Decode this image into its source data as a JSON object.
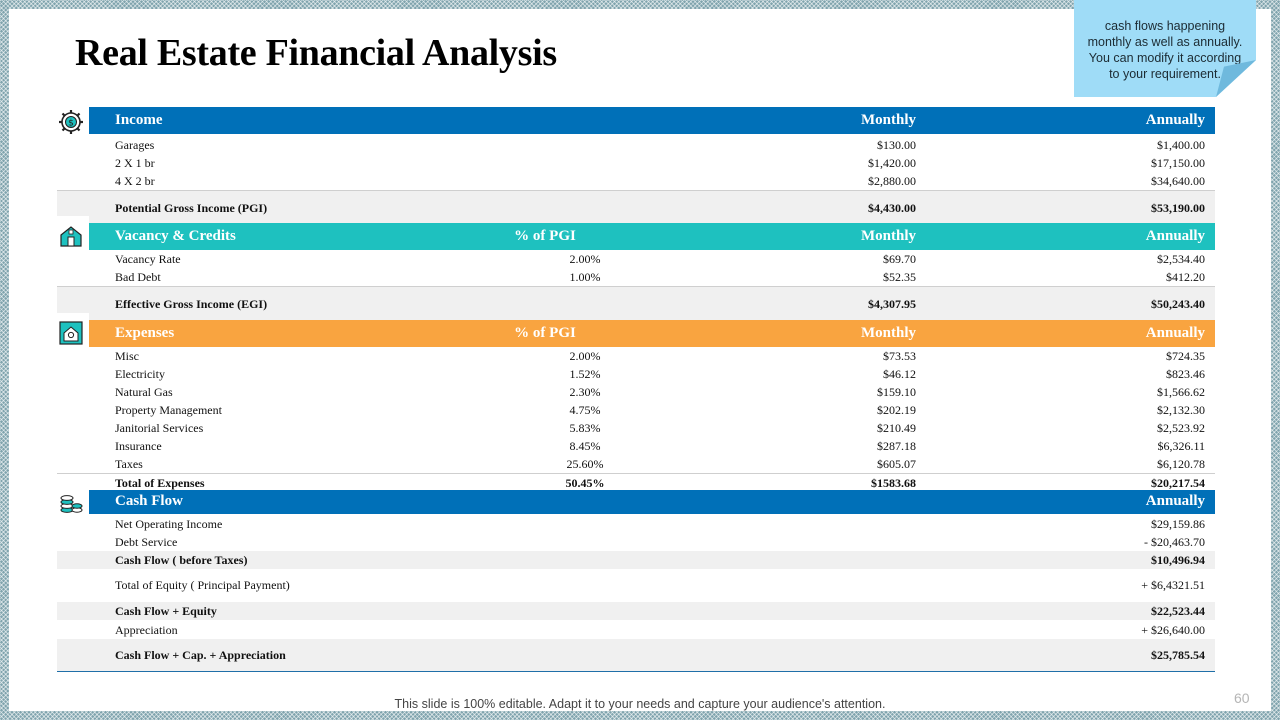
{
  "title": "Real Estate Financial Analysis",
  "note": "cash flows happening monthly as well as annually. You can modify it according to your requirement.",
  "page_number": "60",
  "footer": "This slide is 100% editable. Adapt it to your needs and capture your audience's attention.",
  "colors": {
    "blue": "#0070b8",
    "teal": "#1ec1bf",
    "orange": "#f9a440"
  },
  "income": {
    "header": {
      "label": "Income",
      "monthly": "Monthly",
      "annually": "Annually"
    },
    "rows": [
      {
        "label": "Garages",
        "monthly": "$130.00",
        "annually": "$1,400.00"
      },
      {
        "label": "2 X 1 br",
        "monthly": "$1,420.00",
        "annually": "$17,150.00"
      },
      {
        "label": "4 X 2 br",
        "monthly": "$2,880.00",
        "annually": "$34,640.00"
      }
    ],
    "total": {
      "label": "Potential Gross Income (PGI)",
      "monthly": "$4,430.00",
      "annually": "$53,190.00"
    }
  },
  "vacancy": {
    "header": {
      "label": "Vacancy & Credits",
      "pct": "% of PGI",
      "monthly": "Monthly",
      "annually": "Annually"
    },
    "rows": [
      {
        "label": "Vacancy Rate",
        "pct": "2.00%",
        "monthly": "$69.70",
        "annually": "$2,534.40"
      },
      {
        "label": "Bad Debt",
        "pct": "1.00%",
        "monthly": "$52.35",
        "annually": "$412.20"
      }
    ],
    "total": {
      "label": "Effective Gross Income (EGI)",
      "monthly": "$4,307.95",
      "annually": "$50,243.40"
    }
  },
  "expenses": {
    "header": {
      "label": "Expenses",
      "pct": "% of PGI",
      "monthly": "Monthly",
      "annually": "Annually"
    },
    "rows": [
      {
        "label": "Misc",
        "pct": "2.00%",
        "monthly": "$73.53",
        "annually": "$724.35"
      },
      {
        "label": "Electricity",
        "pct": "1.52%",
        "monthly": "$46.12",
        "annually": "$823.46"
      },
      {
        "label": "Natural Gas",
        "pct": "2.30%",
        "monthly": "$159.10",
        "annually": "$1,566.62"
      },
      {
        "label": "Property Management",
        "pct": "4.75%",
        "monthly": "$202.19",
        "annually": "$2,132.30"
      },
      {
        "label": "Janitorial Services",
        "pct": "5.83%",
        "monthly": "$210.49",
        "annually": "$2,523.92"
      },
      {
        "label": "Insurance",
        "pct": "8.45%",
        "monthly": "$287.18",
        "annually": "$6,326.11"
      },
      {
        "label": "Taxes",
        "pct": "25.60%",
        "monthly": "$605.07",
        "annually": "$6,120.78"
      }
    ],
    "total": {
      "label": "Total of Expenses",
      "pct": "50.45%",
      "monthly": "$1583.68",
      "annually": "$20,217.54"
    }
  },
  "cashflow": {
    "header": {
      "label": "Cash Flow",
      "annually": "Annually"
    },
    "rows": [
      {
        "label": "Net Operating Income",
        "annually": "$29,159.86"
      },
      {
        "label": "Debt Service",
        "annually": "- $20,463.70"
      },
      {
        "label": "Cash Flow ( before Taxes)",
        "annually": "$10,496.94"
      },
      {
        "label": "Total of Equity ( Principal Payment)",
        "annually": "+ $6,4321.51"
      },
      {
        "label": "Cash Flow + Equity",
        "annually": "$22,523.44"
      },
      {
        "label": "Appreciation",
        "annually": "+ $26,640.00"
      },
      {
        "label": "Cash Flow + Cap. + Appreciation",
        "annually": "$25,785.54"
      }
    ]
  }
}
